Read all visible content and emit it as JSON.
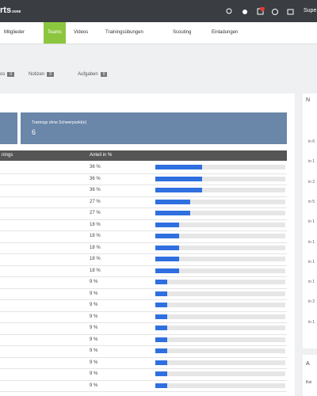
{
  "topbar": {
    "logo": "rts",
    "logo_suffix": "zone",
    "user": "Supe"
  },
  "nav": [
    "Mitglieder",
    "Teams",
    "Videos",
    "Trainingsübungen",
    "Scouting",
    "Einladungen"
  ],
  "nav_active": 1,
  "tabs": [
    {
      "label": "os",
      "count": "0"
    },
    {
      "label": "Notizen",
      "count": "0"
    },
    {
      "label": "Aufgaben",
      "count": "0"
    }
  ],
  "summary": {
    "label": "Trainings ohne Schwerpunkt(e)",
    "value": "6"
  },
  "table": {
    "headers": [
      "nings",
      "Anteil in %"
    ],
    "rows": [
      {
        "share": 36,
        "share_label": "36 %"
      },
      {
        "share": 36,
        "share_label": "36 %"
      },
      {
        "share": 36,
        "share_label": "36 %"
      },
      {
        "share": 27,
        "share_label": "27 %"
      },
      {
        "share": 27,
        "share_label": "27 %"
      },
      {
        "share": 18,
        "share_label": "18 %"
      },
      {
        "share": 18,
        "share_label": "18 %"
      },
      {
        "share": 18,
        "share_label": "18 %"
      },
      {
        "share": 18,
        "share_label": "18 %"
      },
      {
        "share": 18,
        "share_label": "18 %"
      },
      {
        "share": 9,
        "share_label": "9 %"
      },
      {
        "share": 9,
        "share_label": "9 %"
      },
      {
        "share": 9,
        "share_label": "9 %"
      },
      {
        "share": 9,
        "share_label": "9 %"
      },
      {
        "share": 9,
        "share_label": "9 %"
      },
      {
        "share": 9,
        "share_label": "9 %"
      },
      {
        "share": 9,
        "share_label": "9 %"
      },
      {
        "share": 9,
        "share_label": "9 %"
      },
      {
        "share": 9,
        "share_label": "9 %"
      },
      {
        "share": 9,
        "share_label": "9 %"
      }
    ]
  },
  "side": {
    "title": "N",
    "items": [
      "in 6",
      "in 1",
      "in 2",
      "in 5",
      "in 1",
      "in 1",
      "in 1",
      "in 1",
      "in 2",
      "in 1"
    ],
    "title2": "A",
    "empty": "Kei"
  }
}
